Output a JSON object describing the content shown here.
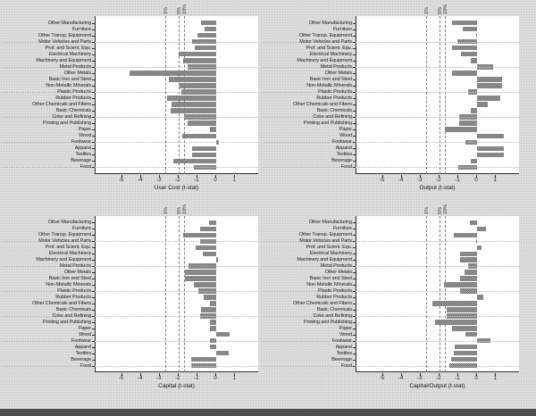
{
  "figure": {
    "colors": {
      "bar": "#878787",
      "bar_dither_dark": "#717171",
      "bar_dither_light": "#9d9d9d",
      "axis": "#2e2e2e",
      "dashed_line": "#7d7d7d",
      "gridline": "#b4b4b4",
      "text": "#1a1a1a",
      "plot_background": "#ffffff",
      "page_background": "#dcdcdc",
      "bottom_strip": "#4e4e4e"
    }
  },
  "categories": [
    "Other Manufacturing",
    "Furniture",
    "Other Transp. Equipment",
    "Motor Vehicles and Parts",
    "Prof. and Scient. Equ.",
    "Electrical Machinery",
    "Machinery and Equipment",
    "Metal Products",
    "Other Metals",
    "Basic Iron and Steel",
    "Non-Metallic Minerals",
    "Plastic Products",
    "Rubber Products",
    "Other Chemicals and Fibers",
    "Basic Chemicals",
    "Coke and Refining",
    "Printing and Publishing",
    "Paper",
    "Wood",
    "Footwear",
    "Apparel",
    "Textiles",
    "Beverage",
    "Food"
  ],
  "significance_lines": [
    {
      "label": "1%",
      "value": -2.66
    },
    {
      "label": "5%",
      "value": -1.95
    },
    {
      "label": "10%",
      "value": -1.65
    }
  ],
  "x_axis": {
    "ticks": [
      -5,
      -4,
      -3,
      -2,
      -1,
      0,
      1
    ],
    "range": [
      -6.4,
      2.27
    ],
    "grid": false
  },
  "chart_data": [
    {
      "type": "bar",
      "orientation": "horizontal",
      "position": "top-left",
      "xlabel": "User Cost (t-stat)",
      "values": [
        -0.8,
        -0.6,
        -1.0,
        -1.3,
        -1.15,
        -2.0,
        -1.75,
        -1.5,
        -4.6,
        -2.5,
        -1.95,
        -1.85,
        -2.6,
        -2.35,
        -2.4,
        -1.7,
        -1.5,
        -0.35,
        -1.8,
        0.15,
        -1.3,
        -1.3,
        -2.3,
        -1.2
      ]
    },
    {
      "type": "bar",
      "orientation": "horizontal",
      "position": "top-right",
      "xlabel": "Output (t-stat)",
      "values": [
        -1.35,
        -0.75,
        -0.05,
        -1.05,
        -1.35,
        -0.85,
        -0.35,
        0.85,
        -1.35,
        1.3,
        1.3,
        -0.5,
        1.25,
        0.55,
        -0.35,
        -0.95,
        -0.95,
        -1.7,
        1.4,
        -0.6,
        1.4,
        1.4,
        -0.35,
        -1.0
      ]
    },
    {
      "type": "bar",
      "orientation": "horizontal",
      "position": "bottom-left",
      "xlabel": "Capital (t-stat)",
      "values": [
        -0.4,
        -0.85,
        -1.75,
        -0.85,
        -1.1,
        -0.7,
        0.1,
        -1.45,
        -1.65,
        -1.65,
        -1.2,
        -0.95,
        -0.65,
        -0.35,
        -0.8,
        -0.85,
        -0.35,
        -0.35,
        0.7,
        -0.35,
        -0.35,
        0.65,
        -1.35,
        -1.35
      ]
    },
    {
      "type": "bar",
      "orientation": "horizontal",
      "position": "bottom-right",
      "xlabel": "Capital/Output (t-stat)",
      "values": [
        -0.4,
        0.45,
        -1.25,
        -0.05,
        0.25,
        -0.9,
        -0.9,
        -0.5,
        -0.65,
        -0.9,
        -1.75,
        -0.9,
        0.35,
        -2.35,
        -1.6,
        -1.6,
        -2.25,
        -1.35,
        -0.6,
        0.7,
        -1.2,
        -1.25,
        -1.4,
        -1.45
      ]
    }
  ]
}
